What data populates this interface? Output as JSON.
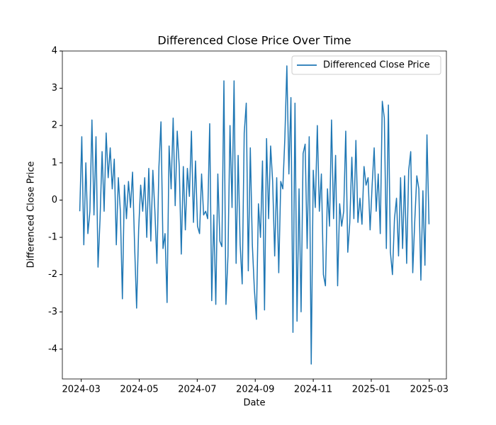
{
  "chart_data": {
    "type": "line",
    "title": "Differenced Close Price Over Time",
    "x_label": "Date",
    "y_label": "Differenced Close Price",
    "legend": "upper right",
    "grid": false,
    "xlim": [
      1.35,
      14.59
    ],
    "ylim": [
      -4.8,
      4.0
    ],
    "xticks": [
      {
        "value": 2,
        "label": "2024-03"
      },
      {
        "value": 4,
        "label": "2024-05"
      },
      {
        "value": 6,
        "label": "2024-07"
      },
      {
        "value": 8,
        "label": "2024-09"
      },
      {
        "value": 10,
        "label": "2024-11"
      },
      {
        "value": 12,
        "label": "2025-01"
      },
      {
        "value": 14,
        "label": "2025-03"
      }
    ],
    "yticks": [
      -4,
      -3,
      -2,
      -1,
      0,
      1,
      2,
      3,
      4
    ],
    "x": [
      1.95,
      2.02,
      2.09,
      2.16,
      2.23,
      2.3,
      2.37,
      2.44,
      2.51,
      2.58,
      2.65,
      2.72,
      2.79,
      2.86,
      2.93,
      3,
      3.07,
      3.14,
      3.21,
      3.28,
      3.35,
      3.42,
      3.49,
      3.56,
      3.63,
      3.7,
      3.77,
      3.84,
      3.91,
      3.98,
      4.05,
      4.12,
      4.19,
      4.26,
      4.33,
      4.4,
      4.47,
      4.54,
      4.61,
      4.68,
      4.75,
      4.82,
      4.89,
      4.96,
      5.03,
      5.1,
      5.17,
      5.24,
      5.31,
      5.38,
      5.45,
      5.52,
      5.59,
      5.66,
      5.73,
      5.8,
      5.87,
      5.94,
      6.01,
      6.08,
      6.15,
      6.22,
      6.29,
      6.36,
      6.43,
      6.5,
      6.57,
      6.64,
      6.71,
      6.78,
      6.85,
      6.92,
      6.99,
      7.06,
      7.13,
      7.2,
      7.27,
      7.34,
      7.41,
      7.48,
      7.55,
      7.62,
      7.69,
      7.76,
      7.83,
      7.9,
      7.97,
      8.04,
      8.11,
      8.18,
      8.25,
      8.32,
      8.39,
      8.46,
      8.53,
      8.6,
      8.67,
      8.74,
      8.81,
      8.88,
      8.95,
      9.02,
      9.09,
      9.16,
      9.23,
      9.3,
      9.37,
      9.44,
      9.51,
      9.58,
      9.65,
      9.72,
      9.79,
      9.86,
      9.93,
      10,
      10.07,
      10.14,
      10.21,
      10.28,
      10.35,
      10.42,
      10.49,
      10.56,
      10.63,
      10.7,
      10.77,
      10.84,
      10.91,
      10.98,
      11.05,
      11.12,
      11.19,
      11.26,
      11.33,
      11.4,
      11.47,
      11.54,
      11.61,
      11.68,
      11.75,
      11.82,
      11.89,
      11.96,
      12.03,
      12.1,
      12.17,
      12.24,
      12.31,
      12.38,
      12.45,
      12.52,
      12.59,
      12.66,
      12.73,
      12.8,
      12.87,
      12.94,
      13.01,
      13.08,
      13.15,
      13.22,
      13.29,
      13.36,
      13.43,
      13.5,
      13.57,
      13.64,
      13.71,
      13.78,
      13.85,
      13.92,
      13.99
    ],
    "series": [
      {
        "name": "Differenced Close Price",
        "color": "#1f77b4",
        "values": [
          -0.3,
          1.7,
          -1.2,
          1.0,
          -0.9,
          -0.3,
          2.15,
          -0.4,
          1.7,
          -1.8,
          -0.5,
          1.3,
          -0.3,
          1.8,
          0.6,
          1.4,
          0.3,
          1.1,
          -1.2,
          0.6,
          -0.3,
          -2.65,
          0.4,
          -0.5,
          0.5,
          -0.2,
          0.75,
          -1.2,
          -2.9,
          -0.8,
          0.4,
          -0.3,
          0.6,
          -1.0,
          0.85,
          -1.1,
          0.8,
          -0.3,
          -1.7,
          0.9,
          2.1,
          -1.3,
          -0.9,
          -2.75,
          1.45,
          0.3,
          2.2,
          -0.15,
          1.85,
          0.9,
          -1.45,
          0.9,
          -0.8,
          0.85,
          0.1,
          1.85,
          -0.6,
          1.05,
          -0.7,
          -0.9,
          0.7,
          -0.4,
          -0.3,
          -0.5,
          2.05,
          -2.7,
          -0.4,
          -2.8,
          0.7,
          -1.1,
          -1.25,
          3.2,
          -2.8,
          -1.5,
          2.0,
          -0.2,
          3.2,
          -1.7,
          1.2,
          -1.2,
          -2.25,
          1.8,
          2.6,
          -1.9,
          1.4,
          -1.2,
          -2.4,
          -3.2,
          -0.1,
          -1.0,
          1.05,
          -2.95,
          1.65,
          -0.5,
          1.45,
          0.5,
          -1.5,
          0.6,
          -1.95,
          0.5,
          0.3,
          1.65,
          3.6,
          0.7,
          2.75,
          -3.55,
          2.6,
          -3.25,
          0.3,
          -3.0,
          1.25,
          1.5,
          -1.3,
          1.7,
          -4.4,
          0.8,
          -0.2,
          2.0,
          -0.3,
          0.7,
          -2.0,
          -2.3,
          0.3,
          -0.7,
          2.15,
          -0.5,
          1.2,
          -2.3,
          -0.1,
          -0.7,
          -0.3,
          1.85,
          -1.4,
          -0.6,
          1.15,
          -0.5,
          1.6,
          -0.6,
          0.05,
          -0.65,
          0.9,
          0.4,
          0.6,
          -0.8,
          0.4,
          1.4,
          -0.3,
          0.7,
          -0.9,
          2.65,
          2.2,
          -1.3,
          2.55,
          -1.4,
          -2.0,
          -0.5,
          0.05,
          -1.5,
          0.6,
          -1.3,
          0.65,
          -1.7,
          0.8,
          1.3,
          -1.95,
          -0.55,
          0.65,
          0.3,
          -2.15,
          0.25,
          -1.75,
          1.75,
          -0.65
        ]
      }
    ]
  }
}
